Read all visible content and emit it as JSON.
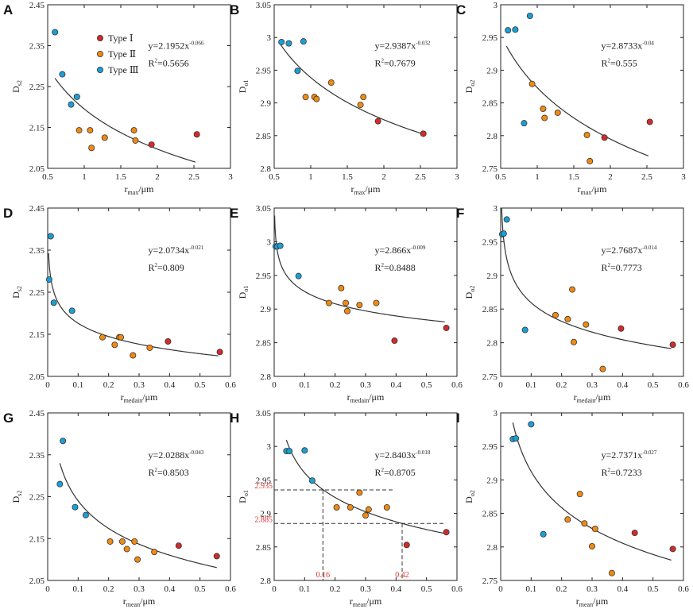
{
  "colors": {
    "type1": "#d42a2a",
    "type2": "#f08a12",
    "type3": "#1b9fd4",
    "guide_label": "#e03030"
  },
  "legend": [
    {
      "label": "Type Ⅰ",
      "color": "#d42a2a"
    },
    {
      "label": "Type Ⅱ",
      "color": "#f08a12"
    },
    {
      "label": "Type Ⅲ",
      "color": "#1b9fd4"
    }
  ],
  "x_labels": {
    "max": {
      "base": "r",
      "sub": "max",
      "unit": "/μm"
    },
    "medain": {
      "base": "r",
      "sub": "medain",
      "unit": "/μm"
    },
    "mean": {
      "base": "r",
      "sub": "mean",
      "unit": "/μm"
    }
  },
  "chart_data": [
    {
      "panel": "A",
      "type": "scatter",
      "xkey": "max",
      "ylabel": {
        "base": "D",
        "sub": "s2"
      },
      "xlim": [
        0.5,
        3
      ],
      "xticks": [
        "0.5",
        "1",
        "1.5",
        "2",
        "2.5",
        "3"
      ],
      "ylim": [
        2.05,
        2.45
      ],
      "yticks": [
        "2.05",
        "2.15",
        "2.25",
        "2.35",
        "2.45"
      ],
      "fit": {
        "a": 2.1952,
        "b": -0.066,
        "x0": 0.6,
        "x1": 2.52
      },
      "equation": {
        "coef": "y=2.1952x",
        "exp": "-0.066",
        "r2_label": "R",
        "r2_value": "=0.5656"
      },
      "show_legend": true,
      "points": {
        "type1": [
          [
            1.92,
            2.108
          ],
          [
            2.54,
            2.133
          ]
        ],
        "type2": [
          [
            0.93,
            2.143
          ],
          [
            1.08,
            2.143
          ],
          [
            1.1,
            2.1
          ],
          [
            1.28,
            2.125
          ],
          [
            1.68,
            2.143
          ],
          [
            1.7,
            2.118
          ]
        ],
        "type3": [
          [
            0.6,
            2.383
          ],
          [
            0.7,
            2.28
          ],
          [
            0.82,
            2.206
          ],
          [
            0.9,
            2.225
          ]
        ]
      }
    },
    {
      "panel": "B",
      "type": "scatter",
      "xkey": "max",
      "ylabel": {
        "base": "D",
        "sub": "o1"
      },
      "xlim": [
        0.5,
        3
      ],
      "xticks": [
        "0.5",
        "1",
        "1.5",
        "2",
        "2.5",
        "3"
      ],
      "ylim": [
        2.8,
        3.05
      ],
      "yticks": [
        "2.8",
        "2.85",
        "2.9",
        "2.95",
        "3",
        "3.05"
      ],
      "fit": {
        "a": 2.9387,
        "b": -0.032,
        "x0": 0.58,
        "x1": 2.52
      },
      "equation": {
        "coef": "y=2.9387x",
        "exp": "-0.032",
        "r2_label": "R",
        "r2_value": "=0.7679"
      },
      "show_legend": false,
      "points": {
        "type1": [
          [
            1.92,
            2.872
          ],
          [
            2.54,
            2.853
          ]
        ],
        "type2": [
          [
            0.93,
            2.909
          ],
          [
            1.05,
            2.909
          ],
          [
            1.08,
            2.906
          ],
          [
            1.28,
            2.931
          ],
          [
            1.68,
            2.897
          ],
          [
            1.72,
            2.909
          ]
        ],
        "type3": [
          [
            0.6,
            2.993
          ],
          [
            0.7,
            2.991
          ],
          [
            0.82,
            2.949
          ],
          [
            0.9,
            2.994
          ]
        ]
      }
    },
    {
      "panel": "C",
      "type": "scatter",
      "xkey": "max",
      "ylabel": {
        "base": "D",
        "sub": "o2"
      },
      "xlim": [
        0.5,
        3
      ],
      "xticks": [
        "0.5",
        "1",
        "1.5",
        "2",
        "2.5",
        "3"
      ],
      "ylim": [
        2.75,
        3
      ],
      "yticks": [
        "2.75",
        "2.8",
        "2.85",
        "2.9",
        "2.95",
        "3"
      ],
      "fit": {
        "a": 2.8733,
        "b": -0.04,
        "x0": 0.58,
        "x1": 2.52
      },
      "equation": {
        "coef": "y=2.8733x",
        "exp": "-0.04",
        "r2_label": "R",
        "r2_value": "=0.555"
      },
      "show_legend": false,
      "points": {
        "type1": [
          [
            1.92,
            2.797
          ],
          [
            2.54,
            2.821
          ]
        ],
        "type2": [
          [
            0.93,
            2.879
          ],
          [
            1.08,
            2.841
          ],
          [
            1.1,
            2.827
          ],
          [
            1.28,
            2.835
          ],
          [
            1.68,
            2.801
          ],
          [
            1.72,
            2.761
          ]
        ],
        "type3": [
          [
            0.6,
            2.961
          ],
          [
            0.7,
            2.962
          ],
          [
            0.82,
            2.819
          ],
          [
            0.9,
            2.983
          ]
        ]
      }
    },
    {
      "panel": "D",
      "type": "scatter",
      "xkey": "medain",
      "ylabel": {
        "base": "D",
        "sub": "s2"
      },
      "xlim": [
        0,
        0.6
      ],
      "xticks": [
        "0",
        "0.1",
        "0.2",
        "0.3",
        "0.4",
        "0.5",
        "0.6"
      ],
      "ylim": [
        2.05,
        2.45
      ],
      "yticks": [
        "2.05",
        "2.15",
        "2.25",
        "2.35",
        "2.45"
      ],
      "fit": {
        "a": 2.0734,
        "b": -0.021,
        "x0": 0.003,
        "x1": 0.56
      },
      "equation": {
        "coef": "y=2.0734x",
        "exp": "-0.021",
        "r2_label": "R",
        "r2_value": "=0.809"
      },
      "show_legend": false,
      "points": {
        "type1": [
          [
            0.395,
            2.133
          ],
          [
            0.565,
            2.108
          ]
        ],
        "type2": [
          [
            0.18,
            2.143
          ],
          [
            0.22,
            2.125
          ],
          [
            0.235,
            2.143
          ],
          [
            0.24,
            2.143
          ],
          [
            0.28,
            2.1
          ],
          [
            0.335,
            2.118
          ]
        ],
        "type3": [
          [
            0.005,
            2.28
          ],
          [
            0.01,
            2.383
          ],
          [
            0.02,
            2.225
          ],
          [
            0.08,
            2.206
          ]
        ]
      }
    },
    {
      "panel": "E",
      "type": "scatter",
      "xkey": "medain",
      "ylabel": {
        "base": "D",
        "sub": "o1"
      },
      "xlim": [
        0,
        0.6
      ],
      "xticks": [
        "0",
        "0.1",
        "0.2",
        "0.3",
        "0.4",
        "0.5",
        "0.6"
      ],
      "ylim": [
        2.8,
        3.05
      ],
      "yticks": [
        "2.8",
        "2.85",
        "2.9",
        "2.95",
        "3",
        "3.05"
      ],
      "fit": {
        "a": 2.866,
        "b": -0.009,
        "x0": 0.0015,
        "x1": 0.56
      },
      "equation": {
        "coef": "y=2.866x",
        "exp": "-0.009",
        "r2_label": "R",
        "r2_value": "=0.8488"
      },
      "show_legend": false,
      "points": {
        "type1": [
          [
            0.395,
            2.853
          ],
          [
            0.565,
            2.872
          ]
        ],
        "type2": [
          [
            0.18,
            2.909
          ],
          [
            0.22,
            2.931
          ],
          [
            0.235,
            2.909
          ],
          [
            0.24,
            2.897
          ],
          [
            0.28,
            2.906
          ],
          [
            0.335,
            2.909
          ]
        ],
        "type3": [
          [
            0.005,
            2.993
          ],
          [
            0.01,
            2.993
          ],
          [
            0.02,
            2.994
          ],
          [
            0.08,
            2.949
          ]
        ]
      }
    },
    {
      "panel": "F",
      "type": "scatter",
      "xkey": "medain",
      "ylabel": {
        "base": "D",
        "sub": "o2"
      },
      "xlim": [
        0,
        0.6
      ],
      "xticks": [
        "0",
        "0.1",
        "0.2",
        "0.3",
        "0.4",
        "0.5",
        "0.6"
      ],
      "ylim": [
        2.75,
        3
      ],
      "yticks": [
        "2.75",
        "2.8",
        "2.85",
        "2.9",
        "2.95",
        "3"
      ],
      "fit": {
        "a": 2.7687,
        "b": -0.014,
        "x0": 0.0015,
        "x1": 0.56
      },
      "equation": {
        "coef": "y=2.7687x",
        "exp": "-0.014",
        "r2_label": "R",
        "r2_value": "=0.7773"
      },
      "show_legend": false,
      "points": {
        "type1": [
          [
            0.395,
            2.821
          ],
          [
            0.565,
            2.797
          ]
        ],
        "type2": [
          [
            0.18,
            2.841
          ],
          [
            0.22,
            2.835
          ],
          [
            0.235,
            2.879
          ],
          [
            0.24,
            2.801
          ],
          [
            0.28,
            2.827
          ],
          [
            0.335,
            2.761
          ]
        ],
        "type3": [
          [
            0.005,
            2.961
          ],
          [
            0.01,
            2.962
          ],
          [
            0.02,
            2.983
          ],
          [
            0.08,
            2.819
          ]
        ]
      }
    },
    {
      "panel": "G",
      "type": "scatter",
      "xkey": "mean",
      "ylabel": {
        "base": "D",
        "sub": "s2"
      },
      "xlim": [
        0,
        0.6
      ],
      "xticks": [
        "0",
        "0.1",
        "0.2",
        "0.3",
        "0.4",
        "0.5",
        "0.6"
      ],
      "ylim": [
        2.05,
        2.45
      ],
      "yticks": [
        "2.05",
        "2.15",
        "2.25",
        "2.35",
        "2.45"
      ],
      "fit": {
        "a": 2.0288,
        "b": -0.043,
        "x0": 0.04,
        "x1": 0.555
      },
      "equation": {
        "coef": "y=2.0288x",
        "exp": "-0.043",
        "r2_label": "R",
        "r2_value": "=0.8503"
      },
      "show_legend": false,
      "points": {
        "type1": [
          [
            0.43,
            2.133
          ],
          [
            0.555,
            2.108
          ]
        ],
        "type2": [
          [
            0.205,
            2.143
          ],
          [
            0.245,
            2.143
          ],
          [
            0.26,
            2.125
          ],
          [
            0.285,
            2.143
          ],
          [
            0.295,
            2.1
          ],
          [
            0.35,
            2.118
          ]
        ],
        "type3": [
          [
            0.04,
            2.28
          ],
          [
            0.05,
            2.383
          ],
          [
            0.09,
            2.225
          ],
          [
            0.125,
            2.206
          ]
        ]
      }
    },
    {
      "panel": "H",
      "type": "scatter",
      "xkey": "mean",
      "ylabel": {
        "base": "D",
        "sub": "o1"
      },
      "xlim": [
        0,
        0.6
      ],
      "xticks": [
        "0",
        "0.1",
        "0.2",
        "0.3",
        "0.4",
        "0.5",
        "0.6"
      ],
      "ylim": [
        2.8,
        3.05
      ],
      "yticks": [
        "2.8",
        "2.85",
        "2.9",
        "2.95",
        "3",
        "3.05"
      ],
      "fit": {
        "a": 2.8403,
        "b": -0.018,
        "x0": 0.04,
        "x1": 0.56
      },
      "equation": {
        "coef": "y=2.8403x",
        "exp": "-0.018",
        "r2_label": "R",
        "r2_value": "=0.8705"
      },
      "show_legend": false,
      "guides": [
        {
          "x": 0.16,
          "y": 2.935,
          "x_label": "0.16",
          "y_label": "2.935",
          "x_end": 0.39
        },
        {
          "x": 0.42,
          "y": 2.885,
          "x_label": "0.42",
          "y_label": "2.885",
          "x_end": 0.56
        }
      ],
      "points": {
        "type1": [
          [
            0.435,
            2.853
          ],
          [
            0.565,
            2.872
          ]
        ],
        "type2": [
          [
            0.205,
            2.909
          ],
          [
            0.25,
            2.909
          ],
          [
            0.28,
            2.931
          ],
          [
            0.3,
            2.897
          ],
          [
            0.31,
            2.906
          ],
          [
            0.37,
            2.909
          ]
        ],
        "type3": [
          [
            0.04,
            2.993
          ],
          [
            0.05,
            2.993
          ],
          [
            0.1,
            2.994
          ],
          [
            0.125,
            2.949
          ]
        ]
      }
    },
    {
      "panel": "I",
      "type": "scatter",
      "xkey": "mean",
      "ylabel": {
        "base": "D",
        "sub": "o2"
      },
      "xlim": [
        0,
        0.6
      ],
      "xticks": [
        "0",
        "0.1",
        "0.2",
        "0.3",
        "0.4",
        "0.5",
        "0.6"
      ],
      "ylim": [
        2.75,
        3
      ],
      "yticks": [
        "2.75",
        "2.8",
        "2.85",
        "2.9",
        "2.95",
        "3"
      ],
      "fit": {
        "a": 2.7371,
        "b": -0.027,
        "x0": 0.04,
        "x1": 0.56
      },
      "equation": {
        "coef": "y=2.7371x",
        "exp": "-0.027",
        "r2_label": "R",
        "r2_value": "=0.7233"
      },
      "show_legend": false,
      "points": {
        "type1": [
          [
            0.44,
            2.821
          ],
          [
            0.565,
            2.797
          ]
        ],
        "type2": [
          [
            0.22,
            2.841
          ],
          [
            0.26,
            2.879
          ],
          [
            0.275,
            2.835
          ],
          [
            0.3,
            2.801
          ],
          [
            0.31,
            2.827
          ],
          [
            0.365,
            2.761
          ]
        ],
        "type3": [
          [
            0.04,
            2.961
          ],
          [
            0.05,
            2.962
          ],
          [
            0.1,
            2.983
          ],
          [
            0.14,
            2.819
          ]
        ]
      }
    }
  ]
}
